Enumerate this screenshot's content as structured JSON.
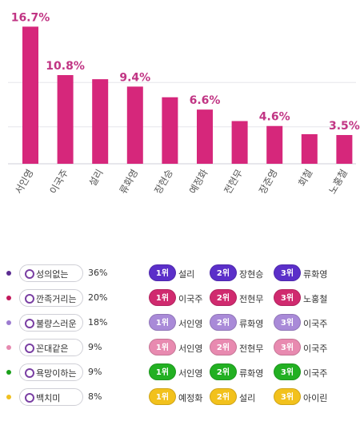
{
  "chart_data": {
    "type": "bar",
    "categories": [
      "서인영",
      "이국주",
      "설리",
      "류화영",
      "장현승",
      "예정화",
      "전현무",
      "장준영",
      "회철",
      "노홍철"
    ],
    "values": [
      16.7,
      10.8,
      10.3,
      9.4,
      8.1,
      6.6,
      5.2,
      4.6,
      3.6,
      3.5
    ],
    "data_labels": [
      "16.7%",
      "10.8%",
      "",
      "9.4%",
      "",
      "6.6%",
      "",
      "4.6%",
      "",
      "3.5%"
    ],
    "ylim": [
      0,
      18
    ],
    "grid": true,
    "bar_color": "#d6277b",
    "label_color": "#c13584",
    "title": "",
    "xlabel": "",
    "ylabel": ""
  },
  "legend": {
    "items": [
      {
        "label": "성의없는",
        "percent": "36%",
        "dot": "#5b2c91"
      },
      {
        "label": "깐족거리는",
        "percent": "20%",
        "dot": "#c2185b"
      },
      {
        "label": "불량스러운",
        "percent": "18%",
        "dot": "#9c7bd0"
      },
      {
        "label": "꼰대같은",
        "percent": "9%",
        "dot": "#e68ab0"
      },
      {
        "label": "욕망이하는",
        "percent": "9%",
        "dot": "#1aa01a"
      },
      {
        "label": "백치미",
        "percent": "8%",
        "dot": "#f0c020"
      }
    ]
  },
  "rankings": [
    {
      "color": "#5b2fc9",
      "entries": [
        {
          "rank": "1위",
          "name": "설리"
        },
        {
          "rank": "2위",
          "name": "장현승"
        },
        {
          "rank": "3위",
          "name": "류화영"
        }
      ]
    },
    {
      "color": "#d02a6f",
      "entries": [
        {
          "rank": "1위",
          "name": "이국주"
        },
        {
          "rank": "2위",
          "name": "전현무"
        },
        {
          "rank": "3위",
          "name": "노홍철"
        }
      ]
    },
    {
      "color": "#a98ad8",
      "entries": [
        {
          "rank": "1위",
          "name": "서인영"
        },
        {
          "rank": "2위",
          "name": "류화영"
        },
        {
          "rank": "3위",
          "name": "이국주"
        }
      ]
    },
    {
      "color": "#e88ab0",
      "entries": [
        {
          "rank": "1위",
          "name": "서인영"
        },
        {
          "rank": "2위",
          "name": "전현무"
        },
        {
          "rank": "3위",
          "name": "이국주"
        }
      ]
    },
    {
      "color": "#22b022",
      "entries": [
        {
          "rank": "1위",
          "name": "서인영"
        },
        {
          "rank": "2위",
          "name": "류화영"
        },
        {
          "rank": "3위",
          "name": "이국주"
        }
      ]
    },
    {
      "color": "#f2c11c",
      "entries": [
        {
          "rank": "1위",
          "name": "예정화"
        },
        {
          "rank": "2위",
          "name": "설리"
        },
        {
          "rank": "3위",
          "name": "아이린"
        }
      ]
    }
  ]
}
